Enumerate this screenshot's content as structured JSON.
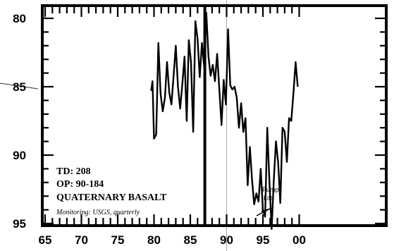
{
  "chart_data": {
    "type": "line",
    "title": "",
    "xlabel": "",
    "ylabel": "",
    "xlim": [
      65,
      100
    ],
    "ylim": [
      80,
      96
    ],
    "y_inverted": true,
    "x_ticks": [
      "65",
      "70",
      "75",
      "80",
      "85",
      "90",
      "95",
      "00"
    ],
    "y_ticks": [
      "80",
      "85",
      "90",
      "95"
    ],
    "grid": false,
    "info": {
      "td": "TD: 208",
      "op": "OP: 90-184",
      "unit": "QUATERNARY BASALT",
      "monitoring": "Monitoring: USGS, quarterly"
    },
    "annotation": {
      "text_line1": "Pump",
      "text_line2": "Lift",
      "x": 87.0,
      "y": 95.0
    },
    "reference_line_x": 90.0,
    "series": [
      {
        "values": [
          [
            79.6,
            85.3
          ],
          [
            79.8,
            84.6
          ],
          [
            80.0,
            88.8
          ],
          [
            80.3,
            88.5
          ],
          [
            80.6,
            81.8
          ],
          [
            80.9,
            85.5
          ],
          [
            81.2,
            86.8
          ],
          [
            81.5,
            85.8
          ],
          [
            81.8,
            83.2
          ],
          [
            82.1,
            85.4
          ],
          [
            82.4,
            86.3
          ],
          [
            82.7,
            84.2
          ],
          [
            83.0,
            82.0
          ],
          [
            83.3,
            85.0
          ],
          [
            83.6,
            86.6
          ],
          [
            83.9,
            84.8
          ],
          [
            84.2,
            82.8
          ],
          [
            84.5,
            87.5
          ],
          [
            84.8,
            81.6
          ],
          [
            85.1,
            83.2
          ],
          [
            85.4,
            88.3
          ],
          [
            85.7,
            80.2
          ],
          [
            86.0,
            81.5
          ],
          [
            86.3,
            84.3
          ],
          [
            86.6,
            81.8
          ],
          [
            86.9,
            83.5
          ],
          [
            87.2,
            79.6
          ],
          [
            87.5,
            82.8
          ],
          [
            87.8,
            84.2
          ],
          [
            88.1,
            83.4
          ],
          [
            88.4,
            84.6
          ],
          [
            88.7,
            82.6
          ],
          [
            89.0,
            85.2
          ],
          [
            89.3,
            87.8
          ],
          [
            89.6,
            84.5
          ],
          [
            89.9,
            86.3
          ],
          [
            90.2,
            80.8
          ],
          [
            90.5,
            84.9
          ],
          [
            90.8,
            85.2
          ],
          [
            91.1,
            85.0
          ],
          [
            91.4,
            85.8
          ],
          [
            91.7,
            88.0
          ],
          [
            92.0,
            86.2
          ],
          [
            92.3,
            88.3
          ],
          [
            92.6,
            87.3
          ],
          [
            92.9,
            92.2
          ],
          [
            93.2,
            89.4
          ],
          [
            93.5,
            91.8
          ],
          [
            93.8,
            93.6
          ],
          [
            94.1,
            92.8
          ],
          [
            94.4,
            93.4
          ],
          [
            94.7,
            91.0
          ],
          [
            95.0,
            94.0
          ],
          [
            95.3,
            94.5
          ],
          [
            95.6,
            88.0
          ],
          [
            95.9,
            92.0
          ],
          [
            96.2,
            95.4
          ],
          [
            96.5,
            91.8
          ],
          [
            96.8,
            89.0
          ],
          [
            97.1,
            90.5
          ],
          [
            97.4,
            93.5
          ],
          [
            97.7,
            88.0
          ],
          [
            98.0,
            88.3
          ],
          [
            98.3,
            90.5
          ],
          [
            98.6,
            87.3
          ],
          [
            98.9,
            87.5
          ],
          [
            99.2,
            85.5
          ],
          [
            99.5,
            83.2
          ],
          [
            99.8,
            85.0
          ]
        ]
      }
    ]
  }
}
